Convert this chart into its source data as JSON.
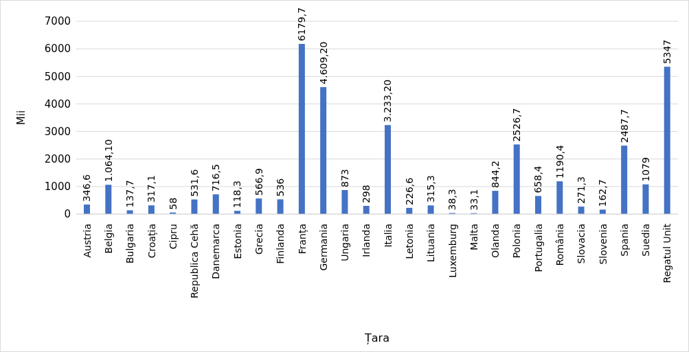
{
  "chart_data": {
    "type": "bar",
    "xlabel": "Țara",
    "ylabel": "Mii",
    "categories": [
      "Austria",
      "Belgia",
      "Bulgaria",
      "Croația",
      "Cipru",
      "Republica Cehă",
      "Danemarca",
      "Estonia",
      "Grecia",
      "Finlanda",
      "Franța",
      "Germania",
      "Ungaria",
      "Irlanda",
      "Italia",
      "Letonia",
      "Lituania",
      "Luxemburg",
      "Malta",
      "Olanda",
      "Polonia",
      "Portugalia",
      "România",
      "Slovacia",
      "Slovenia",
      "Spania",
      "Suedia",
      "Regatul Unit"
    ],
    "values": [
      346.6,
      1064.1,
      137.7,
      317.1,
      58,
      531.6,
      716.5,
      118.3,
      566.9,
      536,
      6179.7,
      4609.2,
      873,
      298,
      3233.2,
      226.6,
      315.3,
      38.3,
      33.1,
      844.2,
      2526.7,
      658.4,
      1190.4,
      271.3,
      162.7,
      2487.7,
      1079,
      5347
    ],
    "value_labels": [
      "346,6",
      "1.064,10",
      "137,7",
      "317,1",
      "58",
      "531,6",
      "716,5",
      "118,3",
      "566,9",
      "536",
      "6179,7",
      "4.609,20",
      "873",
      "298",
      "3.233,20",
      "226,6",
      "315,3",
      "38,3",
      "33,1",
      "844,2",
      "2526,7",
      "658,4",
      "1190,4",
      "271,3",
      "162,7",
      "2487,7",
      "1079",
      "5347"
    ],
    "color": "#4472c4",
    "ylim": [
      0,
      7000
    ],
    "yticks": [
      0,
      1000,
      2000,
      3000,
      4000,
      5000,
      6000,
      7000
    ],
    "grid": "y"
  }
}
